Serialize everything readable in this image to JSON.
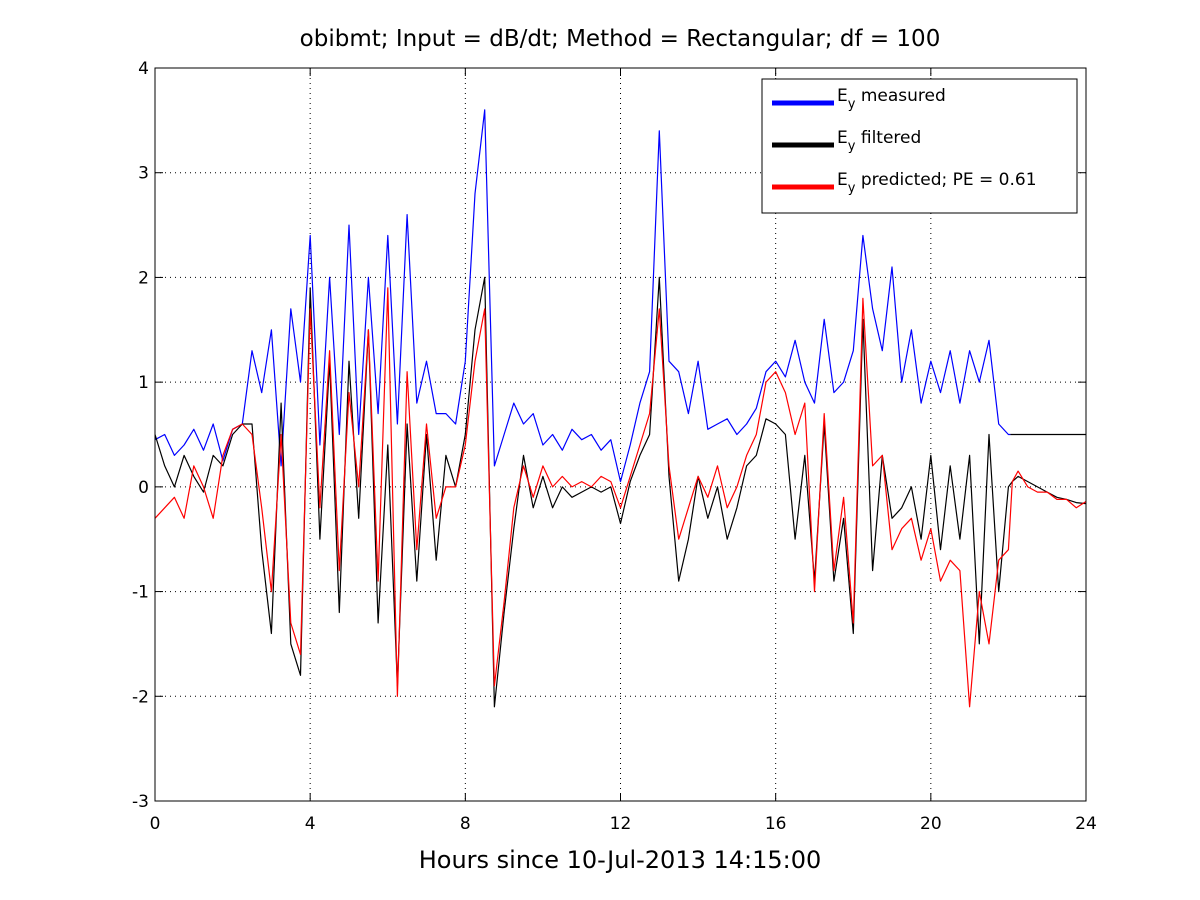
{
  "chart_data": {
    "type": "line",
    "title": "obibmt; Input = dB/dt; Method = Rectangular; df = 100",
    "xlabel": "Hours since 10-Jul-2013 14:15:00",
    "ylabel": "",
    "xlim": [
      0,
      24
    ],
    "ylim": [
      -3,
      4
    ],
    "xticks": [
      "0",
      "4",
      "8",
      "12",
      "16",
      "20",
      "24"
    ],
    "yticks": [
      "-3",
      "-2",
      "-1",
      "0",
      "1",
      "2",
      "3",
      "4"
    ],
    "grid": true,
    "legend_position": "top-right",
    "legend": {
      "entries": [
        {
          "base": "E",
          "sub": "y",
          "rest": " measured",
          "color": "#0000ff"
        },
        {
          "base": "E",
          "sub": "y",
          "rest": " filtered",
          "color": "#000000"
        },
        {
          "base": "E",
          "sub": "y",
          "rest": " predicted; PE = 0.61",
          "color": "#ff0000"
        }
      ]
    },
    "series": [
      {
        "color": "#0000ff",
        "x": [
          0,
          0.25,
          0.5,
          0.75,
          1,
          1.25,
          1.5,
          1.75,
          2,
          2.25,
          2.5,
          2.75,
          3,
          3.25,
          3.5,
          3.75,
          4,
          4.25,
          4.5,
          4.75,
          5,
          5.25,
          5.5,
          5.75,
          6,
          6.25,
          6.5,
          6.75,
          7,
          7.25,
          7.5,
          7.75,
          8,
          8.25,
          8.5,
          8.75,
          9,
          9.25,
          9.5,
          9.75,
          10,
          10.25,
          10.5,
          10.75,
          11,
          11.25,
          11.5,
          11.75,
          12,
          12.25,
          12.5,
          12.75,
          13,
          13.25,
          13.5,
          13.75,
          14,
          14.25,
          14.5,
          14.75,
          15,
          15.25,
          15.5,
          15.75,
          16,
          16.25,
          16.5,
          16.75,
          17,
          17.25,
          17.5,
          17.75,
          18,
          18.25,
          18.5,
          18.75,
          19,
          19.25,
          19.5,
          19.75,
          20,
          20.25,
          20.5,
          20.75,
          21,
          21.25,
          21.5,
          21.75,
          22,
          22.05
        ],
        "y": [
          0.45,
          0.5,
          0.3,
          0.4,
          0.55,
          0.35,
          0.6,
          0.25,
          0.55,
          0.6,
          1.3,
          0.9,
          1.5,
          0.2,
          1.7,
          1.0,
          2.4,
          0.4,
          2.0,
          0.5,
          2.5,
          0.5,
          2.0,
          0.7,
          2.4,
          0.6,
          2.6,
          0.8,
          1.2,
          0.7,
          0.7,
          0.6,
          1.2,
          2.8,
          3.6,
          0.2,
          0.5,
          0.8,
          0.6,
          0.7,
          0.4,
          0.5,
          0.35,
          0.55,
          0.45,
          0.5,
          0.35,
          0.45,
          0.05,
          0.4,
          0.8,
          1.1,
          3.4,
          1.2,
          1.1,
          0.7,
          1.2,
          0.55,
          0.6,
          0.65,
          0.5,
          0.6,
          0.75,
          1.1,
          1.2,
          1.05,
          1.4,
          1.0,
          0.8,
          1.6,
          0.9,
          1.0,
          1.3,
          2.4,
          1.7,
          1.3,
          2.1,
          1.0,
          1.5,
          0.8,
          1.2,
          0.9,
          1.3,
          0.8,
          1.3,
          1.0,
          1.4,
          0.6,
          0.5,
          0.5
        ]
      },
      {
        "color": "#000000",
        "x": [
          0,
          0.25,
          0.5,
          0.75,
          1,
          1.25,
          1.5,
          1.75,
          2,
          2.25,
          2.5,
          2.75,
          3,
          3.25,
          3.5,
          3.75,
          4,
          4.25,
          4.5,
          4.75,
          5,
          5.25,
          5.5,
          5.75,
          6,
          6.25,
          6.5,
          6.75,
          7,
          7.25,
          7.5,
          7.75,
          8,
          8.25,
          8.5,
          8.75,
          9,
          9.25,
          9.5,
          9.75,
          10,
          10.25,
          10.5,
          10.75,
          11,
          11.25,
          11.5,
          11.75,
          12,
          12.25,
          12.5,
          12.75,
          13,
          13.25,
          13.5,
          13.75,
          14,
          14.25,
          14.5,
          14.75,
          15,
          15.25,
          15.5,
          15.75,
          16,
          16.25,
          16.5,
          16.75,
          17,
          17.25,
          17.5,
          17.75,
          18,
          18.25,
          18.5,
          18.75,
          19,
          19.25,
          19.5,
          19.75,
          20,
          20.25,
          20.5,
          20.75,
          21,
          21.25,
          21.5,
          21.75,
          22,
          22.1,
          22.25,
          22.5,
          22.75,
          23,
          23.25,
          23.5,
          23.75,
          24
        ],
        "y": [
          0.5,
          0.2,
          0.0,
          0.3,
          0.1,
          -0.05,
          0.3,
          0.2,
          0.5,
          0.6,
          0.6,
          -0.6,
          -1.4,
          0.8,
          -1.5,
          -1.8,
          1.9,
          -0.5,
          1.2,
          -1.2,
          1.2,
          -0.3,
          1.5,
          -1.3,
          0.4,
          -1.9,
          0.6,
          -0.9,
          0.5,
          -0.7,
          0.3,
          0.0,
          0.5,
          1.5,
          2.0,
          -2.1,
          -1.2,
          -0.4,
          0.3,
          -0.2,
          0.1,
          -0.2,
          0.0,
          -0.1,
          -0.05,
          0.0,
          -0.05,
          0.0,
          -0.35,
          0.05,
          0.3,
          0.5,
          2.0,
          0.1,
          -0.9,
          -0.5,
          0.1,
          -0.3,
          0.0,
          -0.5,
          -0.2,
          0.2,
          0.3,
          0.65,
          0.6,
          0.5,
          -0.5,
          0.3,
          -0.9,
          0.6,
          -0.9,
          -0.3,
          -1.4,
          1.6,
          -0.8,
          0.3,
          -0.3,
          -0.2,
          0.0,
          -0.5,
          0.3,
          -0.6,
          0.2,
          -0.5,
          0.3,
          -1.5,
          0.5,
          -1.0,
          0.0,
          0.05,
          0.1,
          0.05,
          0.0,
          -0.05,
          -0.1,
          -0.12,
          -0.15,
          -0.16
        ]
      },
      {
        "color": "#ff0000",
        "x": [
          0,
          0.25,
          0.5,
          0.75,
          1,
          1.25,
          1.5,
          1.75,
          2,
          2.25,
          2.5,
          2.75,
          3,
          3.25,
          3.5,
          3.75,
          4,
          4.25,
          4.5,
          4.75,
          5,
          5.25,
          5.5,
          5.75,
          6,
          6.25,
          6.5,
          6.75,
          7,
          7.25,
          7.5,
          7.75,
          8,
          8.25,
          8.5,
          8.75,
          9,
          9.25,
          9.5,
          9.75,
          10,
          10.25,
          10.5,
          10.75,
          11,
          11.25,
          11.5,
          11.75,
          12,
          12.25,
          12.5,
          12.75,
          13,
          13.25,
          13.5,
          13.75,
          14,
          14.25,
          14.5,
          14.75,
          15,
          15.25,
          15.5,
          15.75,
          16,
          16.25,
          16.5,
          16.75,
          17,
          17.25,
          17.5,
          17.75,
          18,
          18.25,
          18.5,
          18.75,
          19,
          19.25,
          19.5,
          19.75,
          20,
          20.25,
          20.5,
          20.75,
          21,
          21.25,
          21.5,
          21.75,
          22,
          22.1,
          22.25,
          22.5,
          22.75,
          23,
          23.25,
          23.5,
          23.75,
          24
        ],
        "y": [
          -0.3,
          -0.2,
          -0.1,
          -0.3,
          0.2,
          0.0,
          -0.3,
          0.3,
          0.55,
          0.6,
          0.5,
          -0.2,
          -1.0,
          0.5,
          -1.3,
          -1.6,
          1.7,
          -0.2,
          1.3,
          -0.8,
          0.9,
          0.0,
          1.5,
          -0.9,
          1.9,
          -2.0,
          1.1,
          -0.6,
          0.6,
          -0.3,
          0.0,
          0.0,
          0.4,
          1.2,
          1.7,
          -1.9,
          -1.1,
          -0.2,
          0.2,
          -0.1,
          0.2,
          0.0,
          0.1,
          0.0,
          0.05,
          0.0,
          0.1,
          0.05,
          -0.2,
          0.1,
          0.4,
          0.7,
          1.7,
          0.2,
          -0.5,
          -0.2,
          0.1,
          -0.1,
          0.2,
          -0.2,
          0.0,
          0.3,
          0.5,
          1.0,
          1.1,
          0.9,
          0.5,
          0.8,
          -1.0,
          0.7,
          -0.8,
          -0.1,
          -1.3,
          1.8,
          0.2,
          0.3,
          -0.6,
          -0.4,
          -0.3,
          -0.7,
          -0.4,
          -0.9,
          -0.7,
          -0.8,
          -2.1,
          -1.0,
          -1.5,
          -0.7,
          -0.6,
          0.05,
          0.15,
          0.0,
          -0.05,
          -0.05,
          -0.12,
          -0.12,
          -0.2,
          -0.14
        ]
      },
      {
        "color": "#000000",
        "x": [
          22.05,
          24
        ],
        "y": [
          0.5,
          0.5
        ]
      }
    ]
  }
}
